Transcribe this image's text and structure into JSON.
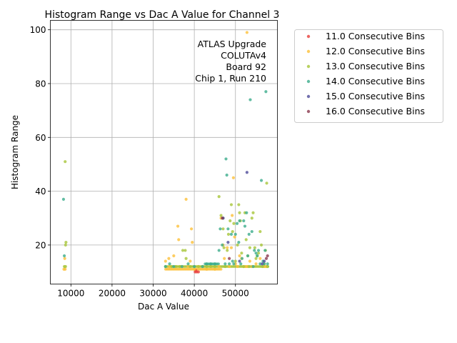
{
  "chart_data": {
    "type": "scatter",
    "title": "Histogram Range vs Dac A Value for Channel 3",
    "xlabel": "Dac A Value",
    "ylabel": "Histogram Range",
    "xlim": [
      5000,
      60200
    ],
    "ylim": [
      5.5,
      103.5
    ],
    "xticks": [
      10000,
      20000,
      30000,
      40000,
      50000
    ],
    "yticks": [
      20,
      40,
      60,
      80,
      100
    ],
    "grid": true,
    "legend_position": "outside-right",
    "annotation": [
      "ATLAS Upgrade",
      "COLUTAv4",
      "Board 92",
      "Chip 1, Run 210"
    ],
    "series": [
      {
        "name": "11.0 Consecutive Bins",
        "color": "#e8413c",
        "points": [
          [
            40200,
            10
          ],
          [
            40600,
            10
          ],
          [
            41000,
            10
          ],
          [
            40400,
            10.5
          ]
        ]
      },
      {
        "name": "12.0 Consecutive Bins",
        "color": "#fcc03a",
        "points": [
          [
            8300,
            11
          ],
          [
            8600,
            11
          ],
          [
            8500,
            15
          ],
          [
            33000,
            14
          ],
          [
            33800,
            15
          ],
          [
            34000,
            12
          ],
          [
            35000,
            16
          ],
          [
            36000,
            27
          ],
          [
            36200,
            22
          ],
          [
            37000,
            12
          ],
          [
            38000,
            37
          ],
          [
            38500,
            12
          ],
          [
            39000,
            14
          ],
          [
            39300,
            26
          ],
          [
            39500,
            21
          ],
          [
            40000,
            11
          ],
          [
            41000,
            12
          ],
          [
            42000,
            12
          ],
          [
            43000,
            11
          ],
          [
            44000,
            12
          ],
          [
            45000,
            11
          ],
          [
            46000,
            12
          ],
          [
            46500,
            30
          ],
          [
            47000,
            20
          ],
          [
            47300,
            15
          ],
          [
            48000,
            19
          ],
          [
            48500,
            12
          ],
          [
            49000,
            19
          ],
          [
            49200,
            31
          ],
          [
            49500,
            45
          ],
          [
            49800,
            23
          ],
          [
            50000,
            13
          ],
          [
            50500,
            12
          ],
          [
            51000,
            16
          ],
          [
            51500,
            15
          ],
          [
            52000,
            12
          ],
          [
            52500,
            12
          ],
          [
            52800,
            99
          ],
          [
            53000,
            12
          ],
          [
            53500,
            14
          ],
          [
            54000,
            12
          ],
          [
            55000,
            13
          ],
          [
            56000,
            15
          ],
          [
            57000,
            12
          ],
          [
            57500,
            12
          ]
        ]
      },
      {
        "name": "13.0 Consecutive Bins",
        "color": "#a8c53a",
        "points": [
          [
            8600,
            51
          ],
          [
            8700,
            20
          ],
          [
            8800,
            21
          ],
          [
            8400,
            12
          ],
          [
            8700,
            12
          ],
          [
            33000,
            12
          ],
          [
            34500,
            12
          ],
          [
            35500,
            12
          ],
          [
            36500,
            12
          ],
          [
            37200,
            18
          ],
          [
            37800,
            18
          ],
          [
            38000,
            15
          ],
          [
            39000,
            12
          ],
          [
            40000,
            12
          ],
          [
            41000,
            12
          ],
          [
            42000,
            12
          ],
          [
            43000,
            12
          ],
          [
            44000,
            12
          ],
          [
            45000,
            12
          ],
          [
            46000,
            38
          ],
          [
            46500,
            31
          ],
          [
            47000,
            26
          ],
          [
            47200,
            19
          ],
          [
            47500,
            12
          ],
          [
            48000,
            18
          ],
          [
            48300,
            24
          ],
          [
            48700,
            29
          ],
          [
            49000,
            35
          ],
          [
            49300,
            25
          ],
          [
            49600,
            28
          ],
          [
            50000,
            14
          ],
          [
            50500,
            20
          ],
          [
            50800,
            35
          ],
          [
            51000,
            32
          ],
          [
            51200,
            29
          ],
          [
            51500,
            17
          ],
          [
            52000,
            12
          ],
          [
            52300,
            32
          ],
          [
            52600,
            22
          ],
          [
            53000,
            16
          ],
          [
            53300,
            12
          ],
          [
            53500,
            19
          ],
          [
            54000,
            30
          ],
          [
            54300,
            32
          ],
          [
            54700,
            19
          ],
          [
            55000,
            15
          ],
          [
            55300,
            16
          ],
          [
            55600,
            17
          ],
          [
            56000,
            25
          ],
          [
            56300,
            20
          ],
          [
            56600,
            12
          ],
          [
            57000,
            13
          ],
          [
            57300,
            18
          ],
          [
            57600,
            43
          ],
          [
            57800,
            12
          ]
        ]
      },
      {
        "name": "14.0 Consecutive Bins",
        "color": "#3cad8c",
        "points": [
          [
            8200,
            37
          ],
          [
            8400,
            16
          ],
          [
            33000,
            12
          ],
          [
            34000,
            13
          ],
          [
            35000,
            12
          ],
          [
            37000,
            12
          ],
          [
            38500,
            13
          ],
          [
            40000,
            12
          ],
          [
            42000,
            12
          ],
          [
            43000,
            13
          ],
          [
            44000,
            13
          ],
          [
            45000,
            13
          ],
          [
            46000,
            18
          ],
          [
            46300,
            26
          ],
          [
            46800,
            20
          ],
          [
            47000,
            30
          ],
          [
            47500,
            13
          ],
          [
            47700,
            52
          ],
          [
            47900,
            46
          ],
          [
            48200,
            26
          ],
          [
            48500,
            13
          ],
          [
            49000,
            24
          ],
          [
            49300,
            14
          ],
          [
            49600,
            13
          ],
          [
            50000,
            24
          ],
          [
            50400,
            28
          ],
          [
            50800,
            21
          ],
          [
            51000,
            29
          ],
          [
            51300,
            13
          ],
          [
            51600,
            15
          ],
          [
            52000,
            29
          ],
          [
            52300,
            27
          ],
          [
            52700,
            32
          ],
          [
            53000,
            16
          ],
          [
            53300,
            24
          ],
          [
            53600,
            74
          ],
          [
            54000,
            25
          ],
          [
            54300,
            12
          ],
          [
            54600,
            18
          ],
          [
            55000,
            17
          ],
          [
            55300,
            16
          ],
          [
            55600,
            18
          ],
          [
            56000,
            13
          ],
          [
            56300,
            44
          ],
          [
            56700,
            14
          ],
          [
            57000,
            13
          ],
          [
            57200,
            18
          ],
          [
            57400,
            77
          ],
          [
            57800,
            13
          ]
        ]
      },
      {
        "name": "15.0 Consecutive Bins",
        "color": "#4f4c9a",
        "points": [
          [
            47000,
            30
          ],
          [
            48200,
            21
          ],
          [
            51000,
            14
          ],
          [
            52800,
            47
          ],
          [
            56500,
            13
          ],
          [
            57000,
            14
          ]
        ]
      },
      {
        "name": "16.0 Consecutive Bins",
        "color": "#8b3a4f",
        "points": [
          [
            46800,
            30
          ],
          [
            48500,
            15
          ],
          [
            57500,
            15
          ],
          [
            57800,
            16
          ]
        ]
      }
    ]
  }
}
